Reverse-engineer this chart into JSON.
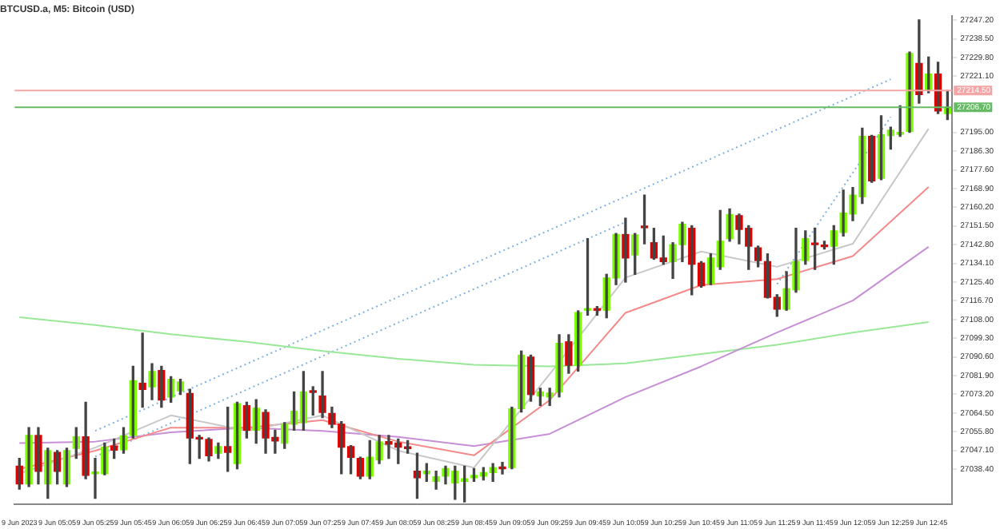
{
  "chart_data": {
    "type": "candlestick",
    "title": "BTCUSD.a, M5: Bitcoin (USD)",
    "categories": [
      "9 Jun 2023",
      null,
      null,
      null,
      "9 Jun 05:05",
      null,
      null,
      null,
      "9 Jun 05:25",
      null,
      null,
      null,
      "9 Jun 05:45",
      null,
      null,
      null,
      "9 Jun 06:05",
      null,
      null,
      null,
      "9 Jun 06:25",
      null,
      null,
      null,
      "9 Jun 06:45",
      null,
      null,
      null,
      "9 Jun 07:05",
      null,
      null,
      null,
      "9 Jun 07:25",
      null,
      null,
      null,
      "9 Jun 07:45",
      null,
      null,
      null,
      "9 Jun 08:05",
      null,
      null,
      null,
      "9 Jun 08:25",
      null,
      null,
      null,
      "9 Jun 08:45",
      null,
      null,
      null,
      "9 Jun 09:05",
      null,
      null,
      null,
      "9 Jun 09:25",
      null,
      null,
      null,
      "9 Jun 09:45",
      null,
      null,
      null,
      "9 Jun 10:05",
      null,
      null,
      null,
      "9 Jun 10:25",
      null,
      null,
      null,
      "9 Jun 10:45",
      null,
      null,
      null,
      "9 Jun 11:05",
      null,
      null,
      null,
      "9 Jun 11:25",
      null,
      null,
      null,
      "9 Jun 11:45",
      null,
      null,
      null,
      "9 Jun 12:05",
      null,
      null,
      null,
      "9 Jun 12:25",
      null,
      null,
      null,
      "9 Jun 12:45",
      null,
      null
    ],
    "ohlc": [
      [
        27039.8,
        27043.4,
        27029.1,
        27031.5
      ],
      [
        27031.5,
        27057.7,
        27030.3,
        27054.1
      ],
      [
        27054.1,
        27057.7,
        27031.5,
        27037.4
      ],
      [
        27031.5,
        27048.1,
        27024.8,
        27047.0
      ],
      [
        27046.2,
        27047.0,
        27031.5,
        27037.4
      ],
      [
        27031.5,
        27048.1,
        27030.3,
        27047.0
      ],
      [
        27048.1,
        27057.7,
        27043.4,
        27053.4
      ],
      [
        27053.4,
        27069.5,
        27033.9,
        27035.5
      ],
      [
        27036.3,
        27043.4,
        27024.8,
        27036.8
      ],
      [
        27036.3,
        27050.5,
        27035.8,
        27048.6
      ],
      [
        27049.1,
        27052.4,
        27043.4,
        27047.2
      ],
      [
        27047.4,
        27057.7,
        27045.8,
        27053.9
      ],
      [
        27054.1,
        27086.2,
        27052.9,
        27079.5
      ],
      [
        27078.3,
        27101.6,
        27067.2,
        27075.5
      ],
      [
        27076.7,
        27087.4,
        27070.7,
        27083.8
      ],
      [
        27084.3,
        27086.2,
        27067.2,
        27070.5
      ],
      [
        27071.9,
        27081.4,
        27069.5,
        27080.2
      ],
      [
        27074.8,
        27080.2,
        27073.1,
        27079.0
      ],
      [
        27073.6,
        27075.5,
        27041.0,
        27052.9
      ],
      [
        27052.7,
        27054.1,
        27043.4,
        27052.4
      ],
      [
        27052.2,
        27052.9,
        27042.2,
        27044.6
      ],
      [
        27045.8,
        27050.5,
        27043.4,
        27048.9
      ],
      [
        27048.9,
        27067.2,
        27037.4,
        27046.2
      ],
      [
        27041.0,
        27069.5,
        27038.6,
        27068.8
      ],
      [
        27067.9,
        27069.5,
        27052.9,
        27056.5
      ],
      [
        27056.5,
        27070.7,
        27050.5,
        27066.7
      ],
      [
        27064.8,
        27066.0,
        27045.8,
        27052.9
      ],
      [
        27053.1,
        27056.5,
        27045.8,
        27051.5
      ],
      [
        27050.5,
        27060.0,
        27048.1,
        27059.3
      ],
      [
        27059.3,
        27074.3,
        27056.5,
        27065.3
      ],
      [
        27060.0,
        27083.8,
        27056.5,
        27074.3
      ],
      [
        27074.5,
        27076.7,
        27063.6,
        27074.1
      ],
      [
        27072.4,
        27083.8,
        27062.4,
        27064.8
      ],
      [
        27064.3,
        27067.2,
        27057.7,
        27059.3
      ],
      [
        27059.3,
        27060.5,
        27036.3,
        27048.6
      ],
      [
        27048.9,
        27049.3,
        27036.3,
        27043.9
      ],
      [
        27043.4,
        27043.9,
        27033.9,
        27035.1
      ],
      [
        27035.1,
        27051.7,
        27033.9,
        27043.9
      ],
      [
        27042.7,
        27054.1,
        27041.0,
        27051.0
      ],
      [
        27051.2,
        27054.1,
        27043.4,
        27050.0
      ],
      [
        27050.5,
        27052.4,
        27041.0,
        27048.6
      ],
      [
        27048.3,
        27051.7,
        27045.8,
        27048.0
      ],
      [
        27037.4,
        27045.8,
        27024.8,
        27034.4
      ],
      [
        27036.3,
        27041.0,
        27032.7,
        27037.4
      ],
      [
        27032.7,
        27037.4,
        27029.1,
        27034.8
      ],
      [
        27035.1,
        27039.8,
        27031.5,
        27038.6
      ],
      [
        27032.0,
        27039.8,
        27024.4,
        27037.4
      ],
      [
        27032.7,
        27039.8,
        27023.2,
        27033.9
      ],
      [
        27034.4,
        27038.6,
        27032.7,
        27035.5
      ],
      [
        27035.1,
        27039.1,
        27033.4,
        27036.8
      ],
      [
        27036.8,
        27041.0,
        27032.7,
        27039.1
      ],
      [
        27039.3,
        27041.5,
        27036.2,
        27038.6
      ],
      [
        27039.1,
        27067.2,
        27038.6,
        27066.4
      ],
      [
        27066.5,
        27093.3,
        27065.0,
        27091.4
      ],
      [
        27090.5,
        27091.4,
        27070.0,
        27073.1
      ],
      [
        27072.4,
        27076.0,
        27068.0,
        27074.3
      ],
      [
        27072.0,
        27076.0,
        27068.0,
        27073.8
      ],
      [
        27074.3,
        27100.9,
        27072.0,
        27096.9
      ],
      [
        27097.6,
        27100.9,
        27083.0,
        27086.7
      ],
      [
        27086.7,
        27112.0,
        27084.0,
        27111.2
      ],
      [
        27112.3,
        27145.6,
        27110.0,
        27112.9
      ],
      [
        27112.6,
        27114.0,
        27110.0,
        27112.3
      ],
      [
        27112.3,
        27129.0,
        27108.8,
        27127.3
      ],
      [
        27127.3,
        27148.0,
        27124.2,
        27147.5
      ],
      [
        27147.5,
        27155.1,
        27125.4,
        27136.6
      ],
      [
        27138.0,
        27148.0,
        27129.0,
        27147.3
      ],
      [
        27151.1,
        27165.8,
        27143.2,
        27150.7
      ],
      [
        27143.7,
        27150.4,
        27136.0,
        27136.6
      ],
      [
        27136.6,
        27146.8,
        27133.7,
        27134.9
      ],
      [
        27134.9,
        27143.7,
        27127.1,
        27142.8
      ],
      [
        27142.8,
        27153.2,
        27134.9,
        27152.3
      ],
      [
        27150.4,
        27151.6,
        27119.5,
        27133.7
      ],
      [
        27134.2,
        27134.9,
        27123.0,
        27123.7
      ],
      [
        27124.7,
        27138.5,
        27124.2,
        27136.6
      ],
      [
        27132.5,
        27158.7,
        27131.3,
        27144.4
      ],
      [
        27145.6,
        27159.4,
        27144.4,
        27156.8
      ],
      [
        27156.3,
        27157.0,
        27143.2,
        27149.9
      ],
      [
        27150.4,
        27151.6,
        27131.3,
        27142.1
      ],
      [
        27141.3,
        27142.1,
        27132.5,
        27135.4
      ],
      [
        27134.9,
        27138.5,
        27118.0,
        27118.3
      ],
      [
        27118.3,
        27119.5,
        27109.5,
        27112.8
      ],
      [
        27112.8,
        27130.2,
        27112.3,
        27122.3
      ],
      [
        27121.8,
        27150.4,
        27120.7,
        27134.9
      ],
      [
        27135.4,
        27149.2,
        27133.7,
        27145.6
      ],
      [
        27143.4,
        27150.4,
        27131.3,
        27142.8
      ],
      [
        27142.1,
        27144.4,
        27140.8,
        27141.9
      ],
      [
        27142.1,
        27151.6,
        27133.7,
        27149.2
      ],
      [
        27148.5,
        27168.2,
        27146.8,
        27157.5
      ],
      [
        27157.0,
        27169.4,
        27154.0,
        27165.8
      ],
      [
        27165.1,
        27197.0,
        27162.0,
        27193.2
      ],
      [
        27193.2,
        27193.6,
        27171.8,
        27172.5
      ],
      [
        27173.7,
        27202.7,
        27173.0,
        27193.9
      ],
      [
        27193.6,
        27197.4,
        27187.2,
        27196.0
      ],
      [
        27194.1,
        27207.4,
        27193.2,
        27195.0
      ],
      [
        27195.5,
        27232.4,
        27195.0,
        27231.7
      ],
      [
        27227.1,
        27247.3,
        27208.6,
        27212.6
      ],
      [
        27214.5,
        27230.0,
        27213.4,
        27222.1
      ],
      [
        27222.1,
        27227.6,
        27203.8,
        27205.0
      ],
      [
        27203.8,
        27214.5,
        27201.0,
        27206.7
      ]
    ],
    "colors": [
      "#e00000",
      "#7cfc00",
      "#e00000",
      "#7cfc00",
      "#e00000",
      "#7cfc00",
      "#7cfc00",
      "#e00000",
      "#7cfc00",
      "#7cfc00",
      "#e00000",
      "#7cfc00",
      "#7cfc00",
      "#e00000",
      "#7cfc00",
      "#e00000",
      "#7cfc00",
      "#7cfc00",
      "#e00000",
      "#e00000",
      "#e00000",
      "#7cfc00",
      "#e00000",
      "#7cfc00",
      "#e00000",
      "#7cfc00",
      "#e00000",
      "#e00000",
      "#7cfc00",
      "#7cfc00",
      "#7cfc00",
      "#e00000",
      "#e00000",
      "#e00000",
      "#e00000",
      "#e00000",
      "#e00000",
      "#7cfc00",
      "#7cfc00",
      "#e00000",
      "#e00000",
      "#e00000",
      "#e00000",
      "#7cfc00",
      "#7cfc00",
      "#7cfc00",
      "#7cfc00",
      "#7cfc00",
      "#7cfc00",
      "#7cfc00",
      "#7cfc00",
      "#e00000",
      "#7cfc00",
      "#7cfc00",
      "#e00000",
      "#7cfc00",
      "#7cfc00",
      "#7cfc00",
      "#e00000",
      "#7cfc00",
      "#7cfc00",
      "#e00000",
      "#7cfc00",
      "#7cfc00",
      "#e00000",
      "#7cfc00",
      "#e00000",
      "#e00000",
      "#e00000",
      "#7cfc00",
      "#7cfc00",
      "#e00000",
      "#e00000",
      "#7cfc00",
      "#7cfc00",
      "#7cfc00",
      "#e00000",
      "#e00000",
      "#e00000",
      "#e00000",
      "#e00000",
      "#7cfc00",
      "#7cfc00",
      "#7cfc00",
      "#e00000",
      "#e00000",
      "#7cfc00",
      "#7cfc00",
      "#7cfc00",
      "#7cfc00",
      "#e00000",
      "#7cfc00",
      "#7cfc00",
      "#7cfc00",
      "#7cfc00",
      "#e00000",
      "#7cfc00",
      "#e00000",
      "#7cfc00"
    ],
    "series": [
      {
        "type": "line",
        "color": "#c8c8c8",
        "x": [
          "9 Jun 2023",
          "9 Jun 05:25",
          "9 Jun 06:05",
          "9 Jun 06:45",
          "9 Jun 07:25",
          "9 Jun 08:05",
          "9 Jun 08:45",
          "9 Jun 09:25",
          "9 Jun 10:05",
          "9 Jun 10:45",
          "9 Jun 11:25",
          "9 Jun 12:05",
          "9 Jun 12:45"
        ],
        "values": [
          27036.3,
          27048.4,
          27063.4,
          27056.2,
          27063.4,
          27047.0,
          27039.1,
          27082.6,
          27127.5,
          27139.6,
          27132.5,
          27143.2,
          27196.7
        ]
      },
      {
        "type": "line",
        "color": "#f48a8a",
        "x": [
          "9 Jun 2023",
          "9 Jun 05:25",
          "9 Jun 06:05",
          "9 Jun 06:45",
          "9 Jun 07:25",
          "9 Jun 08:05",
          "9 Jun 08:45",
          "9 Jun 09:25",
          "9 Jun 10:05",
          "9 Jun 10:45",
          "9 Jun 11:25",
          "9 Jun 12:05",
          "9 Jun 12:45"
        ],
        "values": [
          27038.4,
          27047.0,
          27057.7,
          27057.7,
          27061.2,
          27051.2,
          27044.8,
          27070.5,
          27111.1,
          27124.0,
          27126.8,
          27137.5,
          27169.6
        ]
      },
      {
        "type": "line",
        "color": "#c78fd6",
        "x": [
          "9 Jun 2023",
          "9 Jun 05:25",
          "9 Jun 06:05",
          "9 Jun 06:45",
          "9 Jun 07:25",
          "9 Jun 08:05",
          "9 Jun 08:45",
          "9 Jun 09:25",
          "9 Jun 10:05",
          "9 Jun 10:45",
          "9 Jun 11:25",
          "9 Jun 12:05",
          "9 Jun 12:45"
        ],
        "values": [
          27050.5,
          27051.2,
          27055.5,
          27057.7,
          27056.2,
          27053.4,
          27049.1,
          27054.8,
          27071.9,
          27086.2,
          27101.9,
          27116.8,
          27141.8
        ]
      },
      {
        "type": "line",
        "color": "#98e898",
        "x": [
          "9 Jun 2023",
          "9 Jun 05:25",
          "9 Jun 06:05",
          "9 Jun 06:45",
          "9 Jun 07:25",
          "9 Jun 08:05",
          "9 Jun 08:45",
          "9 Jun 09:25",
          "9 Jun 10:05",
          "9 Jun 10:45",
          "9 Jun 11:25",
          "9 Jun 12:05",
          "9 Jun 12:45"
        ],
        "values": [
          27109.0,
          27105.4,
          27101.1,
          27097.6,
          27093.3,
          27089.7,
          27086.9,
          27086.2,
          27087.6,
          27091.9,
          27096.2,
          27101.9,
          27106.8
        ]
      },
      {
        "type": "line",
        "color": "#7fb2e5",
        "line_style": "dotted",
        "x": [
          "9 Jun 05:25",
          "9 Jun 12:25"
        ],
        "values": [
          27056.2,
          27219.7
        ]
      },
      {
        "type": "line",
        "color": "#7fb2e5",
        "line_style": "dotted",
        "x": [
          "9 Jun 05:25",
          "9 Jun 10:05"
        ],
        "values": [
          27044.2,
          27153.3
        ]
      },
      {
        "type": "line",
        "color": "#7fb2e5",
        "line_style": "dotted",
        "x": [
          "9 Jun 11:25",
          "9 Jun 12:25"
        ],
        "values": [
          27124.4,
          27202.2
        ]
      }
    ],
    "ylim": [
      27022,
      27249
    ],
    "yticks": [
      {
        "value": 27038.4,
        "label": "27038.40"
      },
      {
        "value": 27047.1,
        "label": "27047.10"
      },
      {
        "value": 27055.8,
        "label": "27055.80"
      },
      {
        "value": 27064.5,
        "label": "27064.50"
      },
      {
        "value": 27073.2,
        "label": "27073.20"
      },
      {
        "value": 27081.9,
        "label": "27081.90"
      },
      {
        "value": 27090.6,
        "label": "27090.60"
      },
      {
        "value": 27099.3,
        "label": "27099.30"
      },
      {
        "value": 27108.0,
        "label": "27108.00"
      },
      {
        "value": 27116.7,
        "label": "27116.70"
      },
      {
        "value": 27125.4,
        "label": "27125.40"
      },
      {
        "value": 27134.1,
        "label": "27134.10"
      },
      {
        "value": 27142.8,
        "label": "27142.80"
      },
      {
        "value": 27151.5,
        "label": "27151.50"
      },
      {
        "value": 27160.2,
        "label": "27160.20"
      },
      {
        "value": 27168.9,
        "label": "27168.90"
      },
      {
        "value": 27177.6,
        "label": "27177.60"
      },
      {
        "value": 27186.3,
        "label": "27186.30"
      },
      {
        "value": 27195.0,
        "label": "27195.00"
      },
      {
        "value": 27221.1,
        "label": "27221.10"
      },
      {
        "value": 27229.8,
        "label": "27229.80"
      },
      {
        "value": 27238.5,
        "label": "27238.50"
      },
      {
        "value": 27247.2,
        "label": "27247.20"
      }
    ],
    "ref_lines": [
      {
        "axis": "y",
        "value": 27214.5,
        "label": "27214.50",
        "color": "#f4a6a6"
      },
      {
        "axis": "y",
        "value": 27206.7,
        "label": "27206.70",
        "color": "#66bb66"
      }
    ]
  }
}
